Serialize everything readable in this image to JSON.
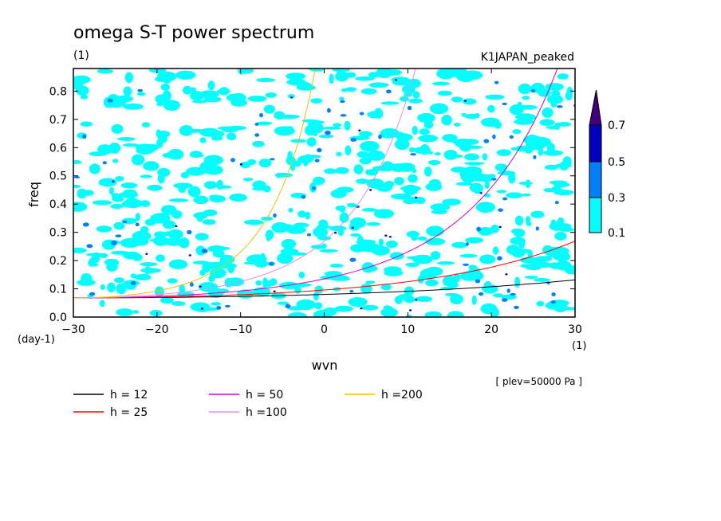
{
  "chart_data": {
    "type": "contour",
    "title": "omega S-T power spectrum",
    "subtitle_units": "(1)",
    "dataset_label": "K1JAPAN_peaked",
    "xlabel": "wvn",
    "x_unit": "(1)",
    "ylabel": "freq",
    "y_unit": "(day-1)",
    "xlim": [
      -30,
      30
    ],
    "ylim": [
      0,
      0.88
    ],
    "x_ticks": [
      "-30",
      "-20",
      "-10",
      "0",
      "10",
      "20",
      "30"
    ],
    "y_ticks": [
      "0.0",
      "0.1",
      "0.2",
      "0.3",
      "0.4",
      "0.5",
      "0.6",
      "0.7",
      "0.8"
    ],
    "note": "[ plev=50000 Pa ]",
    "colorbar": {
      "levels": [
        "0.1",
        "0.3",
        "0.5",
        "0.7"
      ],
      "colors": [
        "#00ffff",
        "#0080ff",
        "#0000c0",
        "#400080"
      ]
    },
    "series": [
      {
        "name": "h = 12",
        "label": "h = 12",
        "h": 12,
        "color": "#000000"
      },
      {
        "name": "h = 25",
        "label": "h = 25",
        "h": 25,
        "color": "#ff0000"
      },
      {
        "name": "h = 50",
        "label": "h = 50",
        "h": 50,
        "color": "#e000c0"
      },
      {
        "name": "h =100",
        "label": "h =100",
        "h": 100,
        "color": "#e090e0"
      },
      {
        "name": "h =200",
        "label": "h =200",
        "h": 200,
        "color": "#f0c000"
      }
    ]
  }
}
